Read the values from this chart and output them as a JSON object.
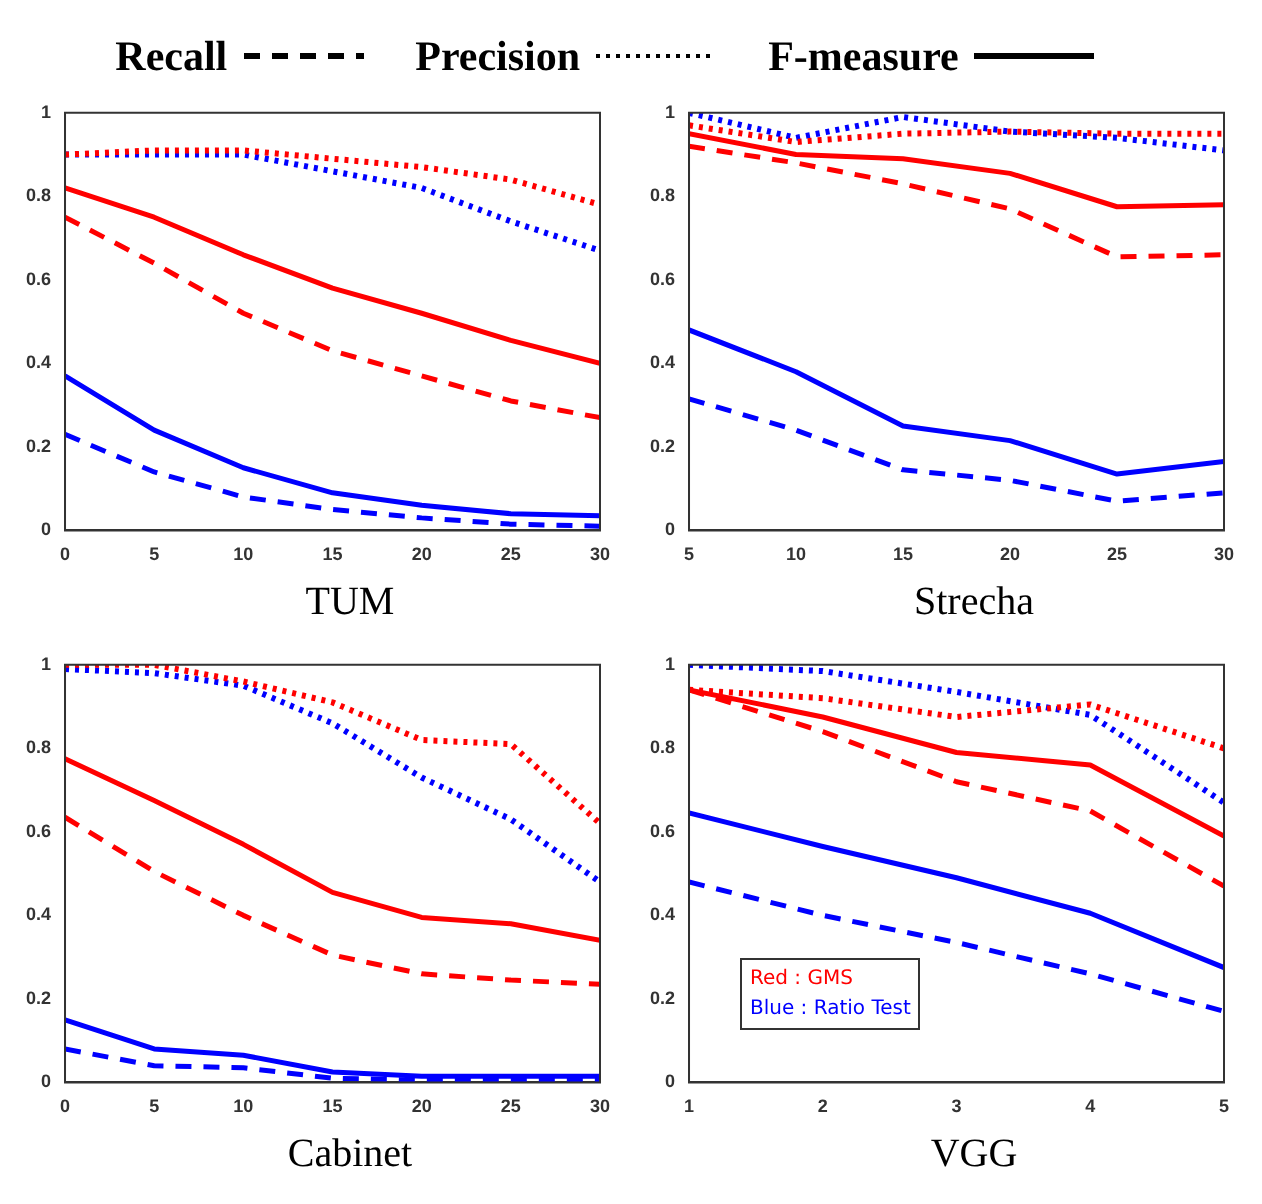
{
  "chart_data": [
    {
      "type": "line",
      "title": "TUM",
      "x": [
        0,
        5,
        10,
        15,
        20,
        25,
        30
      ],
      "xlim": [
        0,
        30
      ],
      "xticks": [
        0,
        5,
        10,
        15,
        20,
        25,
        30
      ],
      "ylim": [
        0,
        1
      ],
      "yticks": [
        0,
        0.2,
        0.4,
        0.6,
        0.8,
        1
      ],
      "grid": false,
      "legend": false,
      "marker": "none",
      "annotations": [
        "Recall",
        "Precision",
        "F-measure"
      ],
      "series": [
        {
          "color": "#ff0000",
          "line_style": "dashed",
          "values": [
            0.75,
            0.64,
            0.52,
            0.43,
            0.37,
            0.31,
            0.27
          ]
        },
        {
          "color": "#ff0000",
          "line_style": "dotted",
          "values": [
            0.9,
            0.91,
            0.91,
            0.89,
            0.87,
            0.84,
            0.78
          ]
        },
        {
          "color": "#ff0000",
          "line_style": "solid",
          "values": [
            0.82,
            0.75,
            0.66,
            0.58,
            0.52,
            0.455,
            0.4
          ]
        },
        {
          "color": "#0000ff",
          "line_style": "dashed",
          "values": [
            0.23,
            0.14,
            0.08,
            0.05,
            0.03,
            0.015,
            0.01
          ]
        },
        {
          "color": "#0000ff",
          "line_style": "dotted",
          "values": [
            0.9,
            0.9,
            0.9,
            0.86,
            0.82,
            0.74,
            0.67
          ]
        },
        {
          "color": "#0000ff",
          "line_style": "solid",
          "values": [
            0.37,
            0.24,
            0.15,
            0.09,
            0.06,
            0.04,
            0.035
          ]
        }
      ]
    },
    {
      "type": "line",
      "title": "Strecha",
      "x": [
        5,
        10,
        15,
        20,
        25,
        30
      ],
      "xlim": [
        5,
        30
      ],
      "xticks": [
        5,
        10,
        15,
        20,
        25,
        30
      ],
      "ylim": [
        0,
        1
      ],
      "yticks": [
        0,
        0.2,
        0.4,
        0.6,
        0.8,
        1
      ],
      "grid": false,
      "legend": false,
      "marker": "none",
      "series": [
        {
          "color": "#ff0000",
          "line_style": "dashed",
          "values": [
            0.92,
            0.88,
            0.83,
            0.77,
            0.655,
            0.66
          ]
        },
        {
          "color": "#ff0000",
          "line_style": "dotted",
          "values": [
            0.97,
            0.93,
            0.95,
            0.955,
            0.95,
            0.95
          ]
        },
        {
          "color": "#ff0000",
          "line_style": "solid",
          "values": [
            0.95,
            0.9,
            0.89,
            0.855,
            0.775,
            0.78
          ]
        },
        {
          "color": "#0000ff",
          "line_style": "dashed",
          "values": [
            0.315,
            0.24,
            0.145,
            0.12,
            0.07,
            0.09
          ]
        },
        {
          "color": "#0000ff",
          "line_style": "dotted",
          "values": [
            1.0,
            0.94,
            0.99,
            0.955,
            0.94,
            0.91
          ]
        },
        {
          "color": "#0000ff",
          "line_style": "solid",
          "values": [
            0.48,
            0.38,
            0.25,
            0.215,
            0.135,
            0.165
          ]
        }
      ]
    },
    {
      "type": "line",
      "title": "Cabinet",
      "x": [
        0,
        5,
        10,
        15,
        20,
        25,
        30
      ],
      "xlim": [
        0,
        30
      ],
      "xticks": [
        0,
        5,
        10,
        15,
        20,
        25,
        30
      ],
      "ylim": [
        0,
        1
      ],
      "yticks": [
        0,
        0.2,
        0.4,
        0.6,
        0.8,
        1
      ],
      "grid": false,
      "legend": false,
      "marker": "none",
      "series": [
        {
          "color": "#ff0000",
          "line_style": "dashed",
          "values": [
            0.635,
            0.505,
            0.4,
            0.305,
            0.26,
            0.245,
            0.235
          ]
        },
        {
          "color": "#ff0000",
          "line_style": "dotted",
          "values": [
            1.0,
            1.0,
            0.96,
            0.91,
            0.82,
            0.81,
            0.62
          ]
        },
        {
          "color": "#ff0000",
          "line_style": "solid",
          "values": [
            0.775,
            0.675,
            0.57,
            0.455,
            0.395,
            0.38,
            0.34
          ]
        },
        {
          "color": "#0000ff",
          "line_style": "dashed",
          "values": [
            0.08,
            0.04,
            0.035,
            0.01,
            0.005,
            0.005,
            0.005
          ]
        },
        {
          "color": "#0000ff",
          "line_style": "dotted",
          "values": [
            0.99,
            0.98,
            0.95,
            0.86,
            0.73,
            0.63,
            0.48
          ]
        },
        {
          "color": "#0000ff",
          "line_style": "solid",
          "values": [
            0.15,
            0.08,
            0.065,
            0.025,
            0.015,
            0.015,
            0.015
          ]
        }
      ]
    },
    {
      "type": "line",
      "title": "VGG",
      "x": [
        1,
        2,
        3,
        4,
        5
      ],
      "xlim": [
        1,
        5
      ],
      "xticks": [
        1,
        2,
        3,
        4,
        5
      ],
      "ylim": [
        0,
        1
      ],
      "yticks": [
        0,
        0.2,
        0.4,
        0.6,
        0.8,
        1
      ],
      "grid": false,
      "legend": false,
      "marker": "none",
      "annotations": [
        "Red : GMS",
        "Blue : Ratio Test"
      ],
      "series": [
        {
          "color": "#ff0000",
          "line_style": "dashed",
          "values": [
            0.94,
            0.84,
            0.72,
            0.65,
            0.47
          ]
        },
        {
          "color": "#ff0000",
          "line_style": "dotted",
          "values": [
            0.94,
            0.92,
            0.875,
            0.905,
            0.8
          ]
        },
        {
          "color": "#ff0000",
          "line_style": "solid",
          "values": [
            0.94,
            0.875,
            0.79,
            0.76,
            0.59
          ]
        },
        {
          "color": "#0000ff",
          "line_style": "dashed",
          "values": [
            0.48,
            0.4,
            0.335,
            0.26,
            0.17
          ]
        },
        {
          "color": "#0000ff",
          "line_style": "dotted",
          "values": [
            1.0,
            0.985,
            0.935,
            0.88,
            0.67
          ]
        },
        {
          "color": "#0000ff",
          "line_style": "solid",
          "values": [
            0.645,
            0.565,
            0.49,
            0.405,
            0.275
          ]
        }
      ]
    }
  ]
}
